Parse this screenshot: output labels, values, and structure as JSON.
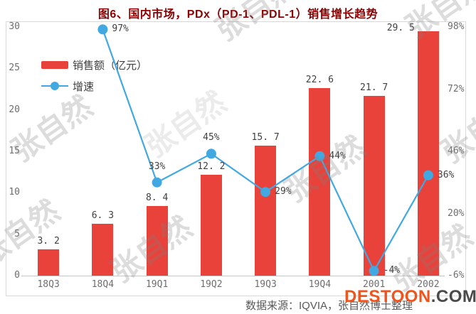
{
  "title": "图6、国内市场，PDx（PD-1、PDL-1）销售增长趋势",
  "source_note": "数据来源：IQVIA，张自然博士整理",
  "watermark": {
    "text": "张自然"
  },
  "logo": {
    "main": "DESTOON",
    "suffix": ".COM"
  },
  "colors": {
    "bar": "#e8423a",
    "line": "#41a8e2",
    "title": "#8b0000",
    "axis_text": "#6e6e6e",
    "data_label": "#3f3f3f",
    "logo_main": "#f0541e",
    "logo_suffix": "#4a4a4a"
  },
  "legend": {
    "position": "upper-left-inside",
    "items": [
      {
        "label": "销售额（亿元）",
        "marker": "bar-swatch"
      },
      {
        "label": "增速",
        "marker": "line-dot"
      }
    ]
  },
  "chart_data": {
    "type": "bar+line",
    "categories": [
      "18Q3",
      "18Q4",
      "19Q1",
      "19Q2",
      "19Q3",
      "19Q4",
      "2001",
      "2002"
    ],
    "series": [
      {
        "name": "销售额（亿元）",
        "type": "bar",
        "axis": "left",
        "values": [
          3.2,
          6.3,
          8.4,
          12.2,
          15.7,
          22.6,
          21.7,
          29.5
        ],
        "labels": [
          "3. 2",
          "6. 3",
          "8. 4",
          "12. 2",
          "15. 7",
          "22. 6",
          "21. 7",
          "29. 5"
        ],
        "label_sides": [
          "above",
          "above",
          "above",
          "above",
          "above",
          "above",
          "above",
          "left"
        ]
      },
      {
        "name": "增速",
        "type": "line",
        "axis": "right",
        "values": [
          null,
          97,
          33,
          45,
          29,
          44,
          -4,
          36
        ],
        "labels": [
          "",
          "97%",
          "33%",
          "45%",
          "29%",
          "44%",
          "-4%",
          "36%"
        ],
        "label_sides": [
          "",
          "right",
          "above",
          "above",
          "right",
          "right",
          "right",
          "right"
        ]
      }
    ],
    "left_axis": {
      "min": 0,
      "max": 30,
      "ticks": [
        30,
        25,
        20,
        15,
        10,
        5,
        0
      ]
    },
    "right_axis": {
      "min": -6,
      "max": 98,
      "tick_labels": [
        "98%",
        "72%",
        "46%",
        "20%",
        "-6%"
      ],
      "tick_values": [
        98,
        72,
        46,
        20,
        -6
      ]
    },
    "grid": false
  }
}
